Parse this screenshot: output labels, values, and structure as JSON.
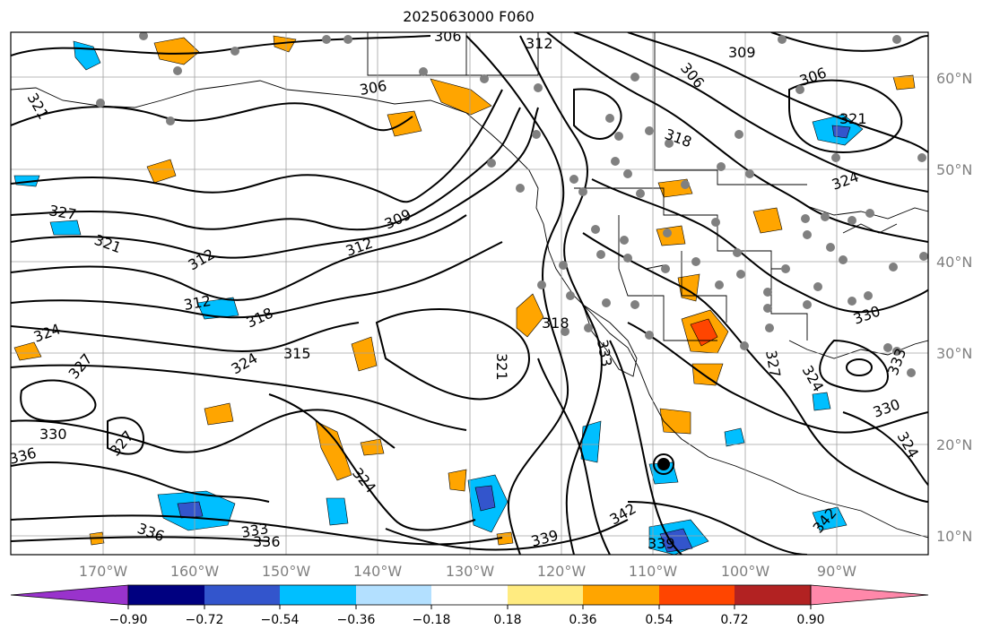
{
  "title": "2025063000 F060",
  "lat_labels": [
    "60°N",
    "50°N",
    "40°N",
    "30°N",
    "20°N",
    "10°N"
  ],
  "lon_labels": [
    "170°W",
    "160°W",
    "150°W",
    "140°W",
    "130°W",
    "120°W",
    "110°W",
    "100°W",
    "90°W"
  ],
  "contour_labels": [
    "306",
    "312",
    "309",
    "306",
    "306",
    "306",
    "321",
    "321",
    "318",
    "324",
    "327",
    "321",
    "312",
    "309",
    "312",
    "318",
    "312",
    "324",
    "327",
    "324",
    "315",
    "318",
    "321",
    "333",
    "327",
    "324",
    "330",
    "333",
    "327",
    "330",
    "336",
    "324",
    "330",
    "333",
    "336",
    "336",
    "339",
    "342",
    "339",
    "342",
    "324"
  ],
  "colorbar": {
    "ticks": [
      "−0.90",
      "−0.72",
      "−0.54",
      "−0.36",
      "−0.18",
      "0.18",
      "0.36",
      "0.54",
      "0.72",
      "0.90"
    ],
    "colors": [
      "#9933cc",
      "#000080",
      "#3355cc",
      "#00bfff",
      "#b3e0ff",
      "#ffffff",
      "#ffeb80",
      "#ffa500",
      "#ff4500",
      "#b22222",
      "#ff88aa"
    ]
  }
}
